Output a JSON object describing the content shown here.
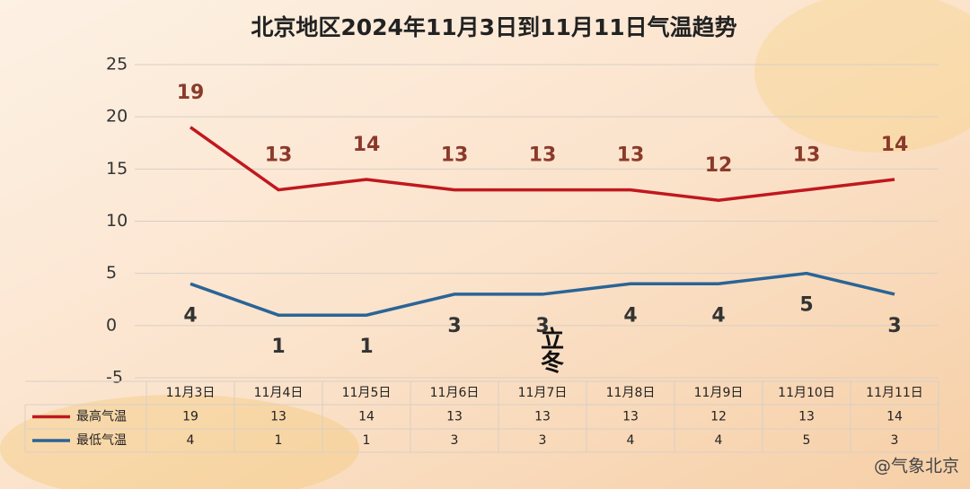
{
  "chart_data": {
    "type": "line",
    "title": "北京地区2024年11月3日到11月11日气温趋势",
    "categories": [
      "11月3日",
      "11月4日",
      "11月5日",
      "11月6日",
      "11月7日",
      "11月8日",
      "11月9日",
      "11月10日",
      "11月11日"
    ],
    "series": [
      {
        "name": "最高气温",
        "color": "#c0181e",
        "values": [
          19,
          13,
          14,
          13,
          13,
          13,
          12,
          13,
          14
        ]
      },
      {
        "name": "最低气温",
        "color": "#2a6496",
        "values": [
          4,
          1,
          1,
          3,
          3,
          4,
          4,
          5,
          3
        ]
      }
    ],
    "ylim": [
      -5,
      25
    ],
    "yticks": [
      -5,
      0,
      5,
      10,
      15,
      20,
      25
    ],
    "grid": true,
    "annotation": "立冬",
    "watermark": "@气象北京"
  }
}
